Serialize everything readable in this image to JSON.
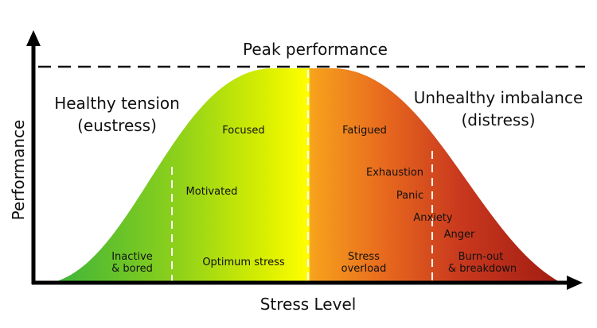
{
  "peak_label": "Peak performance",
  "axes": {
    "x_label": "Stress Level",
    "y_label": "Performance"
  },
  "regions": {
    "left_title": [
      "Healthy tension",
      "(eustress)"
    ],
    "right_title": [
      "Unhealthy imbalance",
      "(distress)"
    ]
  },
  "zones": {
    "inactive": [
      "Inactive",
      "& bored"
    ],
    "optimum": "Optimum stress",
    "overload": [
      "Stress",
      "overload"
    ],
    "burnout": [
      "Burn-out",
      "& breakdown"
    ]
  },
  "states": {
    "motivated": "Motivated",
    "focused": "Focused",
    "fatigued": "Fatigued",
    "exhaustion": "Exhaustion",
    "panic": "Panic",
    "anxiety": "Anxiety",
    "anger": "Anger"
  },
  "gradient_colors": [
    "#3bb33a",
    "#8fd11a",
    "#d9ef00",
    "#ffff00",
    "#f7a31c",
    "#e86a1e",
    "#c9391e",
    "#a01b12"
  ],
  "axis_color": "#000000",
  "dash_color": "#ffffff"
}
